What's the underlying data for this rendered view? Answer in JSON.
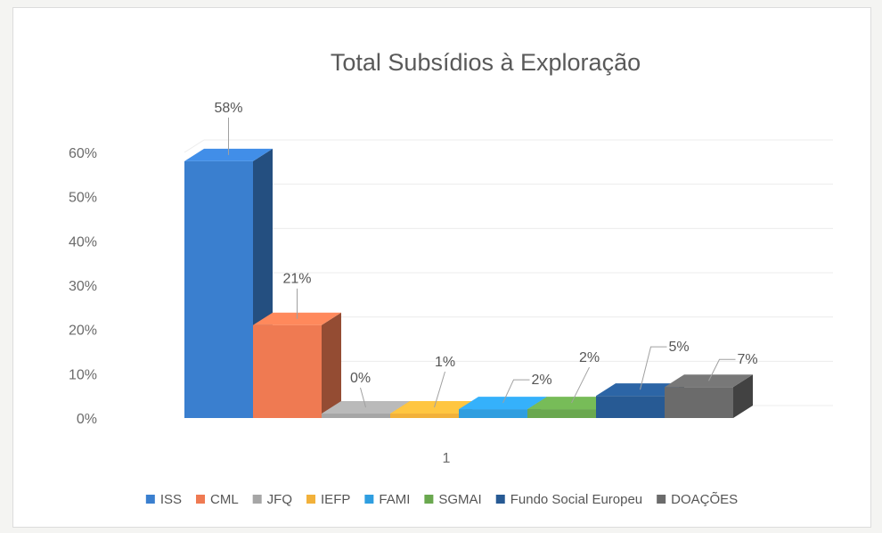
{
  "chart_data": {
    "type": "bar",
    "title": "Total Subsídios à Exploração",
    "xlabel": "",
    "ylabel": "",
    "categories": [
      "1"
    ],
    "series": [
      {
        "name": "ISS",
        "values": [
          58
        ],
        "label": "58%",
        "color": "#3a7fcf"
      },
      {
        "name": "CML",
        "values": [
          21
        ],
        "label": "21%",
        "color": "#ef7a52"
      },
      {
        "name": "JFQ",
        "values": [
          0
        ],
        "label": "0%",
        "color": "#a6a6a6"
      },
      {
        "name": "IEFP",
        "values": [
          1
        ],
        "label": "1%",
        "color": "#f2b13a"
      },
      {
        "name": "FAMI",
        "values": [
          2
        ],
        "label": "2%",
        "color": "#2f9ee0"
      },
      {
        "name": "SGMAI",
        "values": [
          2
        ],
        "label": "2%",
        "color": "#6aa84f"
      },
      {
        "name": "Fundo Social Europeu",
        "values": [
          5
        ],
        "label": "5%",
        "color": "#275a94"
      },
      {
        "name": "DOAÇÕES",
        "values": [
          7
        ],
        "label": "7%",
        "color": "#6b6b6b"
      }
    ],
    "y_ticks": [
      "0%",
      "10%",
      "20%",
      "30%",
      "40%",
      "50%",
      "60%"
    ],
    "ylim": [
      0,
      60
    ],
    "grid": true,
    "legend": "bottom",
    "style": "3d-column"
  }
}
